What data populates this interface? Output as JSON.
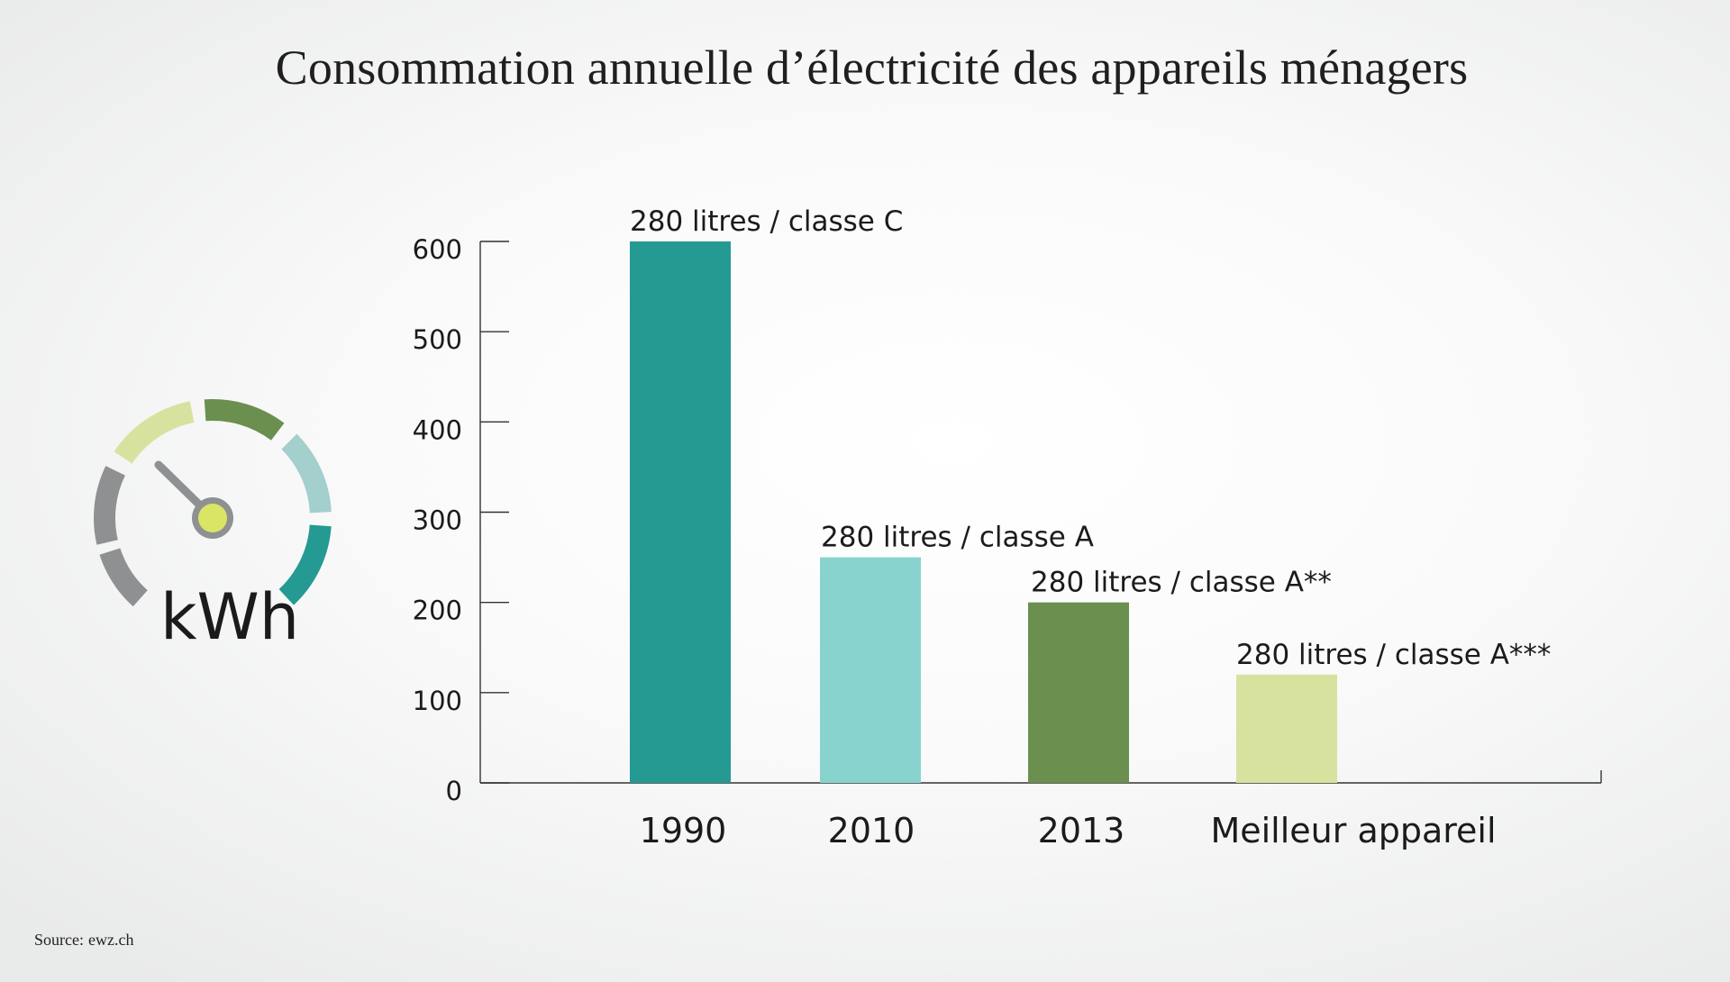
{
  "title": "Consommation annuelle d’électricité des appareils ménagers",
  "source": {
    "label": "Source:",
    "text": "ewz.ch"
  },
  "gauge": {
    "icon": "gauge-icon",
    "unit": "kWh"
  },
  "chart_data": {
    "type": "bar",
    "title": "Consommation annuelle d’électricité des appareils ménagers",
    "xlabel": "",
    "ylabel": "kWh",
    "ylim": [
      0,
      600
    ],
    "yticks": [
      0,
      100,
      200,
      300,
      400,
      500,
      600
    ],
    "categories": [
      "1990",
      "2010",
      "2013",
      "Meilleur appareil"
    ],
    "values": [
      600,
      250,
      200,
      120
    ],
    "annotations": [
      "280 litres / classe C",
      "280 litres / classe A",
      "280 litres / classe A**",
      "280 litres / classe A***"
    ],
    "colors": [
      "#249a92",
      "#89d3ce",
      "#6a8f4e",
      "#d8e29f"
    ],
    "grid": false,
    "legend": "none"
  }
}
